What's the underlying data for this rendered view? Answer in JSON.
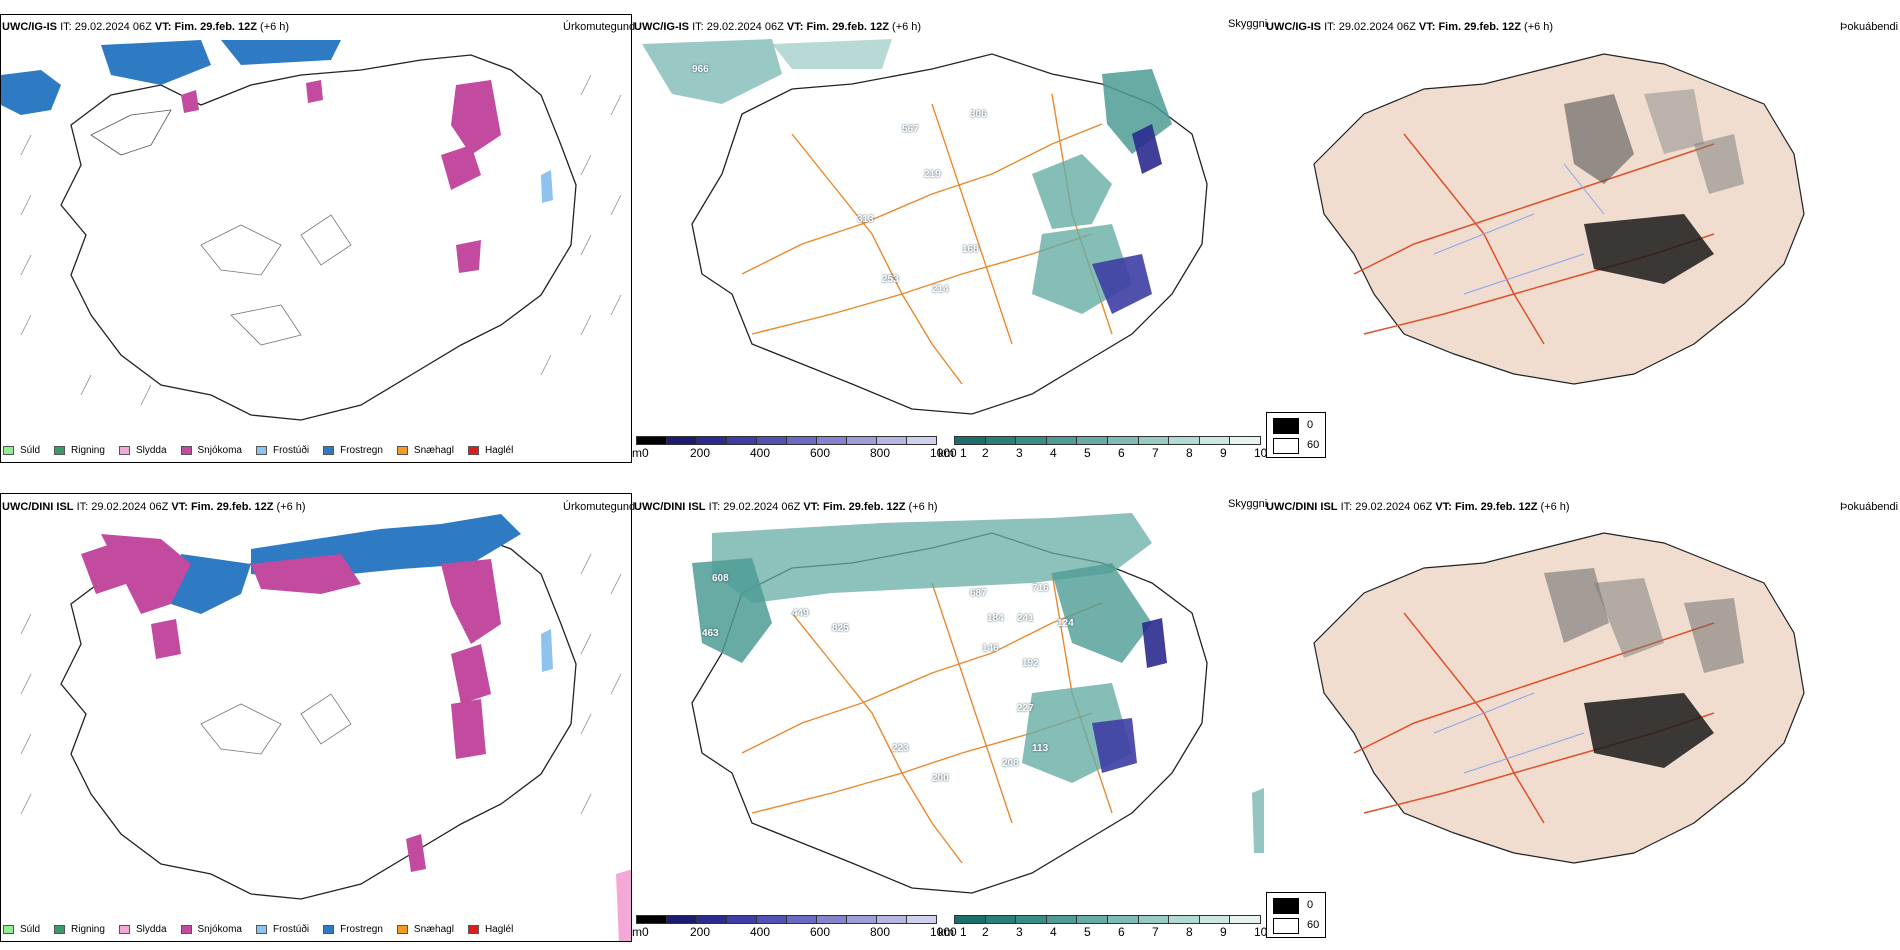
{
  "rows": [
    {
      "model": "UWC/IG-IS",
      "it_label": "IT:",
      "it_value": "29.02.2024 06Z",
      "vt_label": "VT:",
      "vt_value": "Fim. 29.feb. 12Z",
      "lead": "(+6 h)",
      "precip_title": "Úrkomutegund",
      "vis_title": "Skyggni",
      "fog_title": "Þokuábendi",
      "vis_labels": [
        "966",
        "567",
        "306",
        "219",
        "313",
        "168",
        "253",
        "214"
      ]
    },
    {
      "model": "UWC/DINI ISL",
      "it_label": "IT:",
      "it_value": "29.02.2024 06Z",
      "vt_label": "VT:",
      "vt_value": "Fim. 29.feb. 12Z",
      "lead": "(+6 h)",
      "precip_title": "Úrkomutegund",
      "vis_title": "Skyggni",
      "fog_title": "Þokuábendi",
      "vis_labels": [
        "608",
        "463",
        "449",
        "825",
        "716",
        "687",
        "184",
        "241",
        "124",
        "146",
        "192",
        "227",
        "223",
        "113",
        "208",
        "200"
      ]
    }
  ],
  "precip_legend": [
    {
      "label": "Súld",
      "color": "#90ee90"
    },
    {
      "label": "Rigning",
      "color": "#3a9a6a"
    },
    {
      "label": "Slydda",
      "color": "#f4a8d8"
    },
    {
      "label": "Snjókoma",
      "color": "#c24ba0"
    },
    {
      "label": "Frostúði",
      "color": "#8ec3f0"
    },
    {
      "label": "Frostregn",
      "color": "#2e7bc4"
    },
    {
      "label": "Snæhagl",
      "color": "#f59a23"
    },
    {
      "label": "Haglél",
      "color": "#e01b1b"
    }
  ],
  "height_bar": {
    "unit": "m",
    "ticks": [
      "0",
      "200",
      "400",
      "600",
      "800",
      "1000"
    ],
    "colors": [
      "#000000",
      "#1a1a6e",
      "#2b2b8f",
      "#3d3da4",
      "#5252b4",
      "#6a6ac2",
      "#8484cd",
      "#9d9dd8",
      "#b6b6e3",
      "#cfcfee"
    ]
  },
  "km_bar": {
    "unit": "km",
    "ticks": [
      "1",
      "2",
      "3",
      "4",
      "5",
      "6",
      "7",
      "8",
      "9",
      "10"
    ],
    "colors": [
      "#1d6e6a",
      "#2a7e78",
      "#3a8d86",
      "#4e9c95",
      "#66aca5",
      "#7fbcb5",
      "#99cbc5",
      "#b3d9d4",
      "#cde7e3",
      "#e6f3f1"
    ]
  },
  "fog_legend": [
    {
      "label": "0",
      "color": "#000000"
    },
    {
      "label": "60",
      "color": "#ffffff"
    }
  ]
}
